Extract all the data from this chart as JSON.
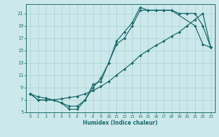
{
  "xlabel": "Humidex (Indice chaleur)",
  "bg_color": "#cce8ea",
  "grid_color": "#aad0d4",
  "line_color": "#1a6b6b",
  "xlim": [
    -0.5,
    23.5
  ],
  "ylim": [
    5,
    22.5
  ],
  "yticks": [
    5,
    7,
    9,
    11,
    13,
    15,
    17,
    19,
    21
  ],
  "xticks": [
    0,
    1,
    2,
    3,
    4,
    5,
    6,
    7,
    8,
    9,
    10,
    11,
    12,
    13,
    14,
    15,
    16,
    17,
    18,
    19,
    20,
    21,
    22,
    23
  ],
  "line1_x": [
    0,
    1,
    2,
    3,
    4,
    5,
    6,
    7,
    8,
    9,
    10,
    11,
    12,
    13,
    14,
    15,
    16,
    17,
    18,
    21,
    22,
    23
  ],
  "line1_y": [
    8,
    7,
    7,
    7,
    6.5,
    5.5,
    5.5,
    7,
    9.5,
    10,
    13,
    16.5,
    18,
    19.5,
    22,
    21.5,
    21.5,
    21.5,
    21.5,
    19,
    16,
    15.5
  ],
  "line2_x": [
    0,
    1,
    2,
    3,
    4,
    5,
    6,
    7,
    8,
    9,
    10,
    11,
    12,
    13,
    14,
    15,
    16,
    17,
    18,
    19,
    20,
    21,
    22,
    23
  ],
  "line2_y": [
    8,
    7.5,
    7.3,
    7,
    7.2,
    7.4,
    7.6,
    8,
    8.5,
    9.2,
    10,
    11,
    12,
    13,
    14.2,
    15,
    15.8,
    16.5,
    17.3,
    18,
    19,
    20,
    21,
    15.5
  ],
  "line3_x": [
    0,
    1,
    2,
    3,
    4,
    5,
    6,
    7,
    8,
    9,
    10,
    11,
    12,
    13,
    14,
    15,
    16,
    17,
    18,
    19,
    20,
    21,
    22,
    23
  ],
  "line3_y": [
    8,
    7,
    7,
    7,
    6.5,
    6,
    6,
    7,
    9,
    10.5,
    13,
    16,
    17,
    19,
    21.5,
    21.5,
    21.5,
    21.5,
    21.5,
    21,
    21,
    21,
    19,
    15.5
  ]
}
